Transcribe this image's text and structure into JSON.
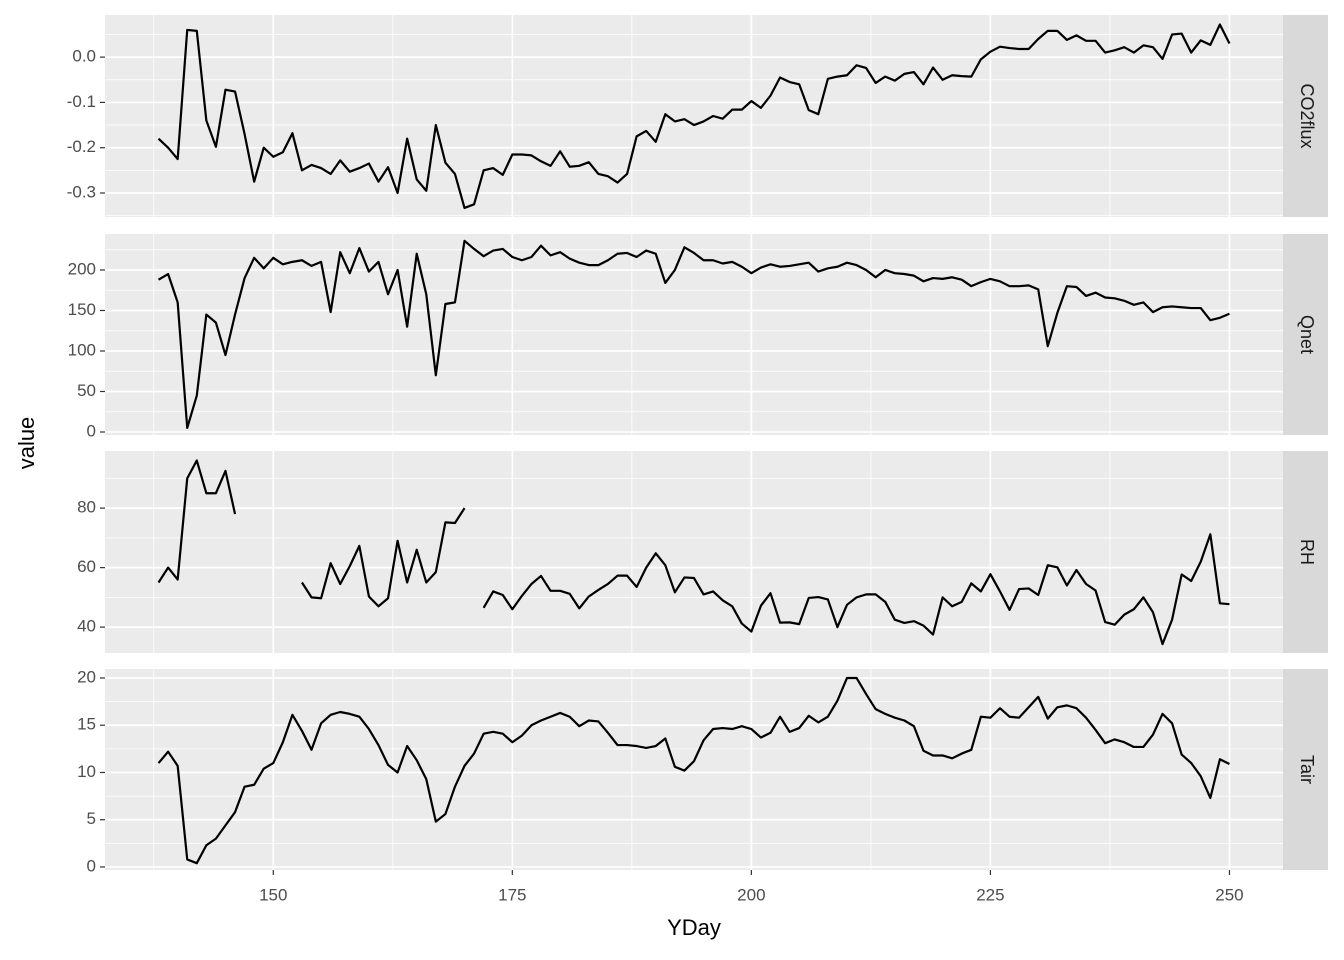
{
  "chart_data": {
    "type": "line",
    "xlabel": "YDay",
    "ylabel": "value",
    "xlim": [
      132.4,
      255.6
    ],
    "xticks": [
      150,
      175,
      200,
      225,
      250
    ],
    "x": [
      138,
      139,
      140,
      141,
      142,
      143,
      144,
      145,
      146,
      147,
      148,
      149,
      150,
      151,
      152,
      153,
      154,
      155,
      156,
      157,
      158,
      159,
      160,
      161,
      162,
      163,
      164,
      165,
      166,
      167,
      168,
      169,
      170,
      171,
      172,
      173,
      174,
      175,
      176,
      177,
      178,
      179,
      180,
      181,
      182,
      183,
      184,
      185,
      186,
      187,
      188,
      189,
      190,
      191,
      192,
      193,
      194,
      195,
      196,
      197,
      198,
      199,
      200,
      201,
      202,
      203,
      204,
      205,
      206,
      207,
      208,
      209,
      210,
      211,
      212,
      213,
      214,
      215,
      216,
      217,
      218,
      219,
      220,
      221,
      222,
      223,
      224,
      225,
      226,
      227,
      228,
      229,
      230,
      231,
      232,
      233,
      234,
      235,
      236,
      237,
      238,
      239,
      240,
      241,
      242,
      243,
      244,
      245,
      246,
      247,
      248,
      249,
      250
    ],
    "series": [
      {
        "name": "CO2flux",
        "color": "#000000",
        "ylim": [
          -0.353,
          0.093
        ],
        "yticks": [
          -0.3,
          -0.2,
          -0.1,
          {
            "value": 0,
            "label": "0.0"
          }
        ],
        "values": [
          -0.18,
          -0.2,
          -0.225,
          0.06,
          0.058,
          -0.14,
          -0.198,
          -0.072,
          -0.076,
          -0.17,
          -0.275,
          -0.2,
          -0.22,
          -0.21,
          -0.168,
          -0.25,
          -0.238,
          -0.245,
          -0.258,
          -0.228,
          -0.253,
          -0.245,
          -0.235,
          -0.275,
          -0.243,
          -0.3,
          -0.18,
          -0.27,
          -0.295,
          -0.15,
          -0.233,
          -0.258,
          -0.333,
          -0.325,
          -0.25,
          -0.245,
          -0.26,
          -0.215,
          -0.215,
          -0.217,
          -0.23,
          -0.24,
          -0.208,
          -0.242,
          -0.24,
          -0.232,
          -0.258,
          -0.263,
          -0.277,
          -0.258,
          -0.175,
          -0.163,
          -0.187,
          -0.126,
          -0.142,
          -0.137,
          -0.15,
          -0.142,
          -0.13,
          -0.136,
          -0.116,
          -0.116,
          -0.097,
          -0.112,
          -0.085,
          -0.045,
          -0.055,
          -0.06,
          -0.117,
          -0.126,
          -0.048,
          -0.043,
          -0.04,
          -0.018,
          -0.024,
          -0.057,
          -0.043,
          -0.052,
          -0.037,
          -0.033,
          -0.06,
          -0.023,
          -0.05,
          -0.04,
          -0.042,
          -0.043,
          -0.005,
          0.012,
          0.023,
          0.02,
          0.018,
          0.018,
          0.04,
          0.058,
          0.058,
          0.038,
          0.048,
          0.036,
          0.036,
          0.01,
          0.015,
          0.022,
          0.01,
          0.026,
          0.022,
          -0.004,
          0.05,
          0.052,
          0.01,
          0.037,
          0.027,
          0.072,
          0.03
        ]
      },
      {
        "name": "Qnet",
        "color": "#000000",
        "ylim": [
          -3.7,
          244.4
        ],
        "yticks": [
          0,
          50,
          100,
          150,
          200
        ],
        "values": [
          188,
          195,
          160,
          5,
          45,
          145,
          135,
          95,
          145,
          190,
          215,
          202,
          215,
          207,
          210,
          212,
          205,
          210,
          148,
          222,
          196,
          227,
          198,
          210,
          170,
          200,
          130,
          220,
          170,
          70,
          158,
          160,
          236,
          226,
          217,
          224,
          226,
          216,
          212,
          216,
          230,
          218,
          222,
          214,
          209,
          206,
          206,
          212,
          220,
          221,
          216,
          224,
          220,
          184,
          200,
          228,
          221,
          212,
          212,
          208,
          210,
          204,
          196,
          203,
          207,
          204,
          205,
          207,
          209,
          198,
          202,
          204,
          209,
          206,
          200,
          191,
          200,
          196,
          195,
          193,
          186,
          190,
          189,
          191,
          188,
          180,
          185,
          189,
          186,
          180,
          180,
          181,
          176,
          106,
          147,
          180,
          179,
          168,
          172,
          166,
          165,
          162,
          157,
          160,
          148,
          154,
          155,
          154,
          153,
          153,
          138,
          141,
          146
        ]
      },
      {
        "name": "RH",
        "color": "#000000",
        "ylim": [
          31.3,
          99.2
        ],
        "yticks": [
          40,
          60,
          80
        ],
        "values": [
          55,
          60,
          56,
          90,
          96,
          85,
          85,
          92.5,
          78,
          null,
          null,
          null,
          null,
          null,
          null,
          55,
          50,
          49.7,
          61.5,
          54.5,
          60.5,
          67.3,
          50.3,
          47,
          49.7,
          69,
          55,
          66,
          55,
          58.5,
          75.2,
          75,
          80,
          null,
          46.5,
          52,
          50.8,
          46,
          50.5,
          54.5,
          57.2,
          52.2,
          52.2,
          51.2,
          46.3,
          50.3,
          52.5,
          54.5,
          57.3,
          57.3,
          53.5,
          60,
          64.8,
          60.8,
          51.7,
          56.7,
          56.5,
          51,
          52,
          49,
          47,
          41.2,
          38.5,
          47.2,
          51.4,
          41.5,
          41.6,
          41,
          49.8,
          50.1,
          49.3,
          40,
          47.5,
          50,
          51,
          51,
          48.5,
          42.5,
          41.4,
          42,
          40.5,
          37.5,
          50,
          47,
          48.5,
          54.7,
          52,
          57.8,
          52,
          45.8,
          52.8,
          53,
          50.8,
          60.8,
          60.1,
          54,
          59.2,
          54.5,
          52.3,
          41.7,
          40.8,
          44.2,
          46,
          50,
          45,
          34.3,
          42.5,
          57.7,
          55.5,
          62,
          71.2,
          48,
          47.7
        ]
      },
      {
        "name": "Tair",
        "color": "#000000",
        "ylim": [
          -0.32,
          20.95
        ],
        "yticks": [
          0,
          5,
          10,
          15,
          20
        ],
        "values": [
          11,
          12.2,
          10.7,
          0.8,
          0.4,
          2.3,
          3,
          4.4,
          5.8,
          8.5,
          8.7,
          10.4,
          11,
          13.2,
          16.1,
          14.4,
          12.4,
          15.2,
          16.1,
          16.4,
          16.2,
          15.9,
          14.6,
          12.9,
          10.8,
          10,
          12.8,
          11.3,
          9.3,
          4.8,
          5.6,
          8.5,
          10.7,
          12,
          14.1,
          14.3,
          14.1,
          13.2,
          13.9,
          15,
          15.5,
          15.9,
          16.3,
          15.9,
          14.9,
          15.5,
          15.4,
          14.2,
          12.9,
          12.9,
          12.8,
          12.6,
          12.8,
          13.6,
          10.6,
          10.2,
          11.2,
          13.4,
          14.6,
          14.7,
          14.6,
          14.9,
          14.6,
          13.7,
          14.2,
          15.9,
          14.3,
          14.7,
          16,
          15.3,
          15.9,
          17.6,
          20,
          20,
          18.3,
          16.7,
          16.2,
          15.8,
          15.5,
          14.9,
          12.3,
          11.8,
          11.8,
          11.5,
          12,
          12.4,
          15.9,
          15.8,
          16.8,
          15.9,
          15.8,
          16.9,
          18,
          15.7,
          16.9,
          17.1,
          16.8,
          15.8,
          14.5,
          13.1,
          13.5,
          13.2,
          12.7,
          12.7,
          14,
          16.2,
          15.2,
          11.9,
          11,
          9.6,
          7.3,
          11.4,
          10.9
        ]
      }
    ]
  }
}
